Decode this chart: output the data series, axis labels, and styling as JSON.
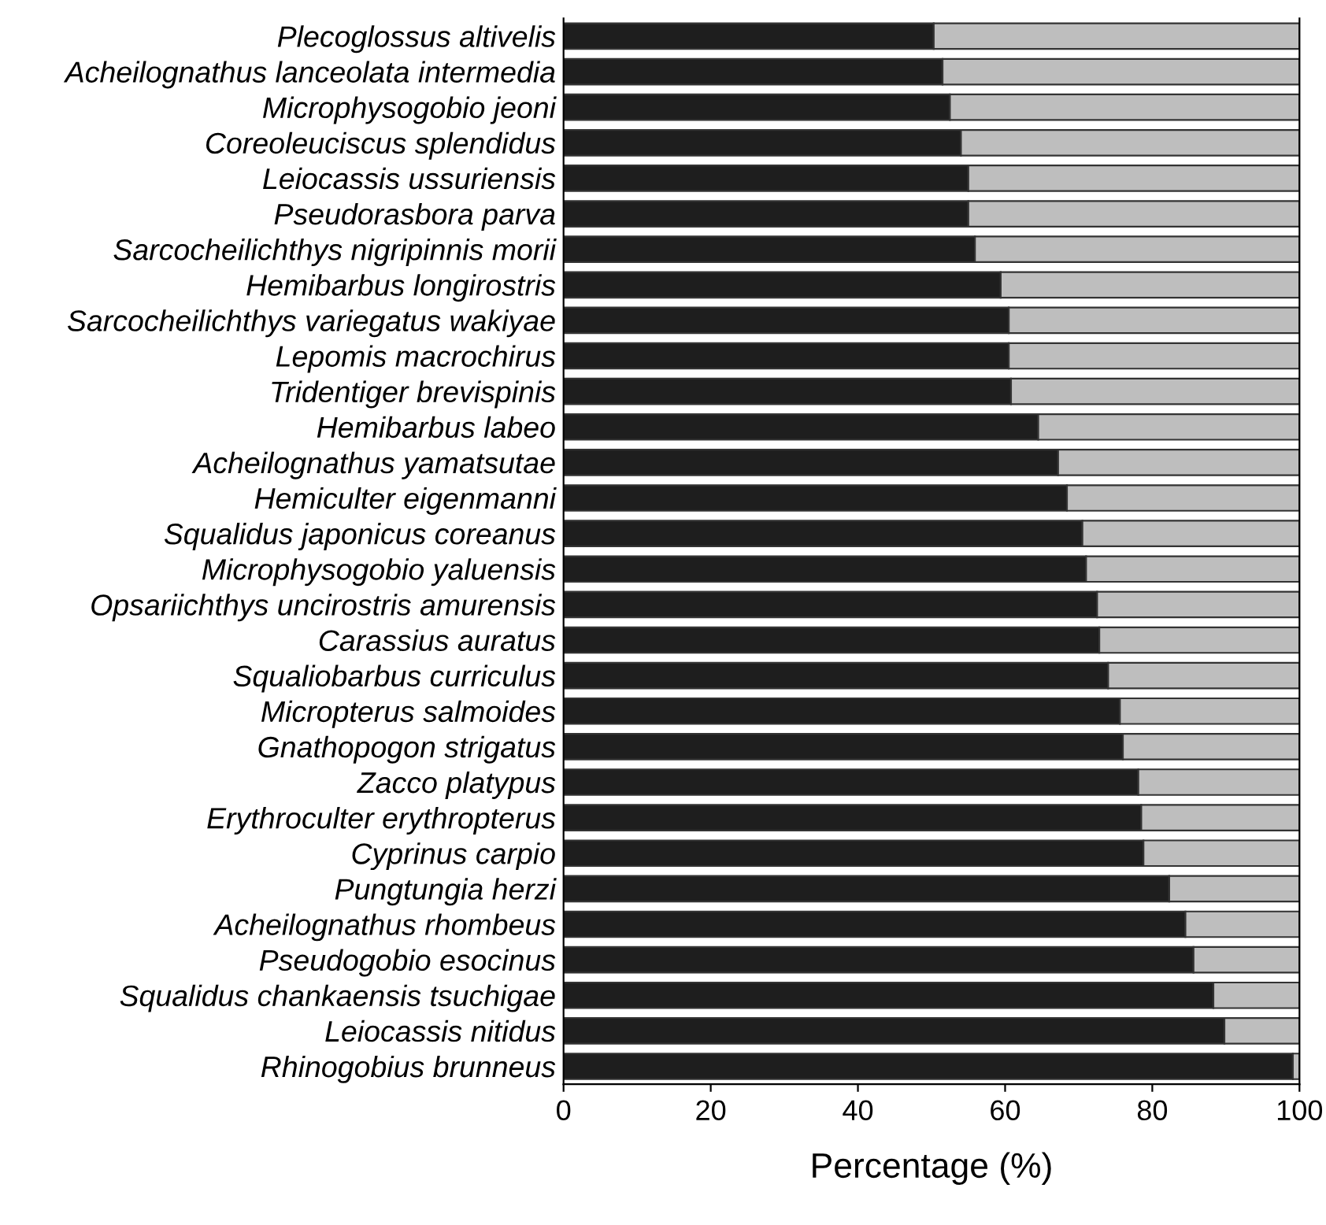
{
  "chart_data": {
    "type": "bar",
    "orientation": "horizontal",
    "stacked": true,
    "xlabel": "Percentage (%)",
    "categories": [
      "Plecoglossus altivelis",
      "Acheilognathus lanceolata intermedia",
      "Microphysogobio jeoni",
      "Coreoleuciscus splendidus",
      "Leiocassis ussuriensis",
      "Pseudorasbora parva",
      "Sarcocheilichthys nigripinnis morii",
      "Hemibarbus longirostris",
      "Sarcocheilichthys variegatus wakiyae",
      "Lepomis macrochirus",
      "Tridentiger brevispinis",
      "Hemibarbus labeo",
      "Acheilognathus yamatsutae",
      "Hemiculter eigenmanni",
      "Squalidus japonicus coreanus",
      "Microphysogobio yaluensis",
      "Opsariichthys uncirostris amurensis",
      "Carassius auratus",
      "Squaliobarbus curriculus",
      "Micropterus salmoides",
      "Gnathopogon strigatus",
      "Zacco platypus",
      "Erythroculter erythropterus",
      "Cyprinus carpio",
      "Pungtungia herzi",
      "Acheilognathus rhombeus",
      "Pseudogobio esocinus",
      "Squalidus chankaensis tsuchigae",
      "Leiocassis nitidus",
      "Rhinogobius brunneus"
    ],
    "series": [
      {
        "color": "#1e1e1e",
        "values": [
          50.3,
          51.5,
          52.5,
          54,
          55,
          55,
          55.9,
          59.4,
          60.5,
          60.5,
          60.8,
          64.5,
          67.2,
          68.4,
          70.5,
          71,
          72.5,
          72.8,
          74,
          75.6,
          76,
          78.1,
          78.5,
          78.8,
          82.3,
          84.5,
          85.6,
          88.3,
          89.8,
          99.1
        ]
      },
      {
        "color": "#bebebe",
        "values": [
          49.7,
          48.5,
          47.5,
          46,
          45,
          45,
          44.1,
          40.6,
          39.5,
          39.5,
          39.2,
          35.5,
          32.8,
          31.6,
          29.5,
          29,
          27.5,
          27.2,
          26,
          24.4,
          24,
          21.9,
          21.5,
          21.2,
          17.7,
          15.5,
          14.4,
          11.7,
          10.2,
          0.9
        ]
      }
    ],
    "xlim": [
      0,
      100
    ],
    "xticks": [
      0,
      20,
      40,
      60,
      80,
      100
    ],
    "grid": false,
    "legend": false
  }
}
